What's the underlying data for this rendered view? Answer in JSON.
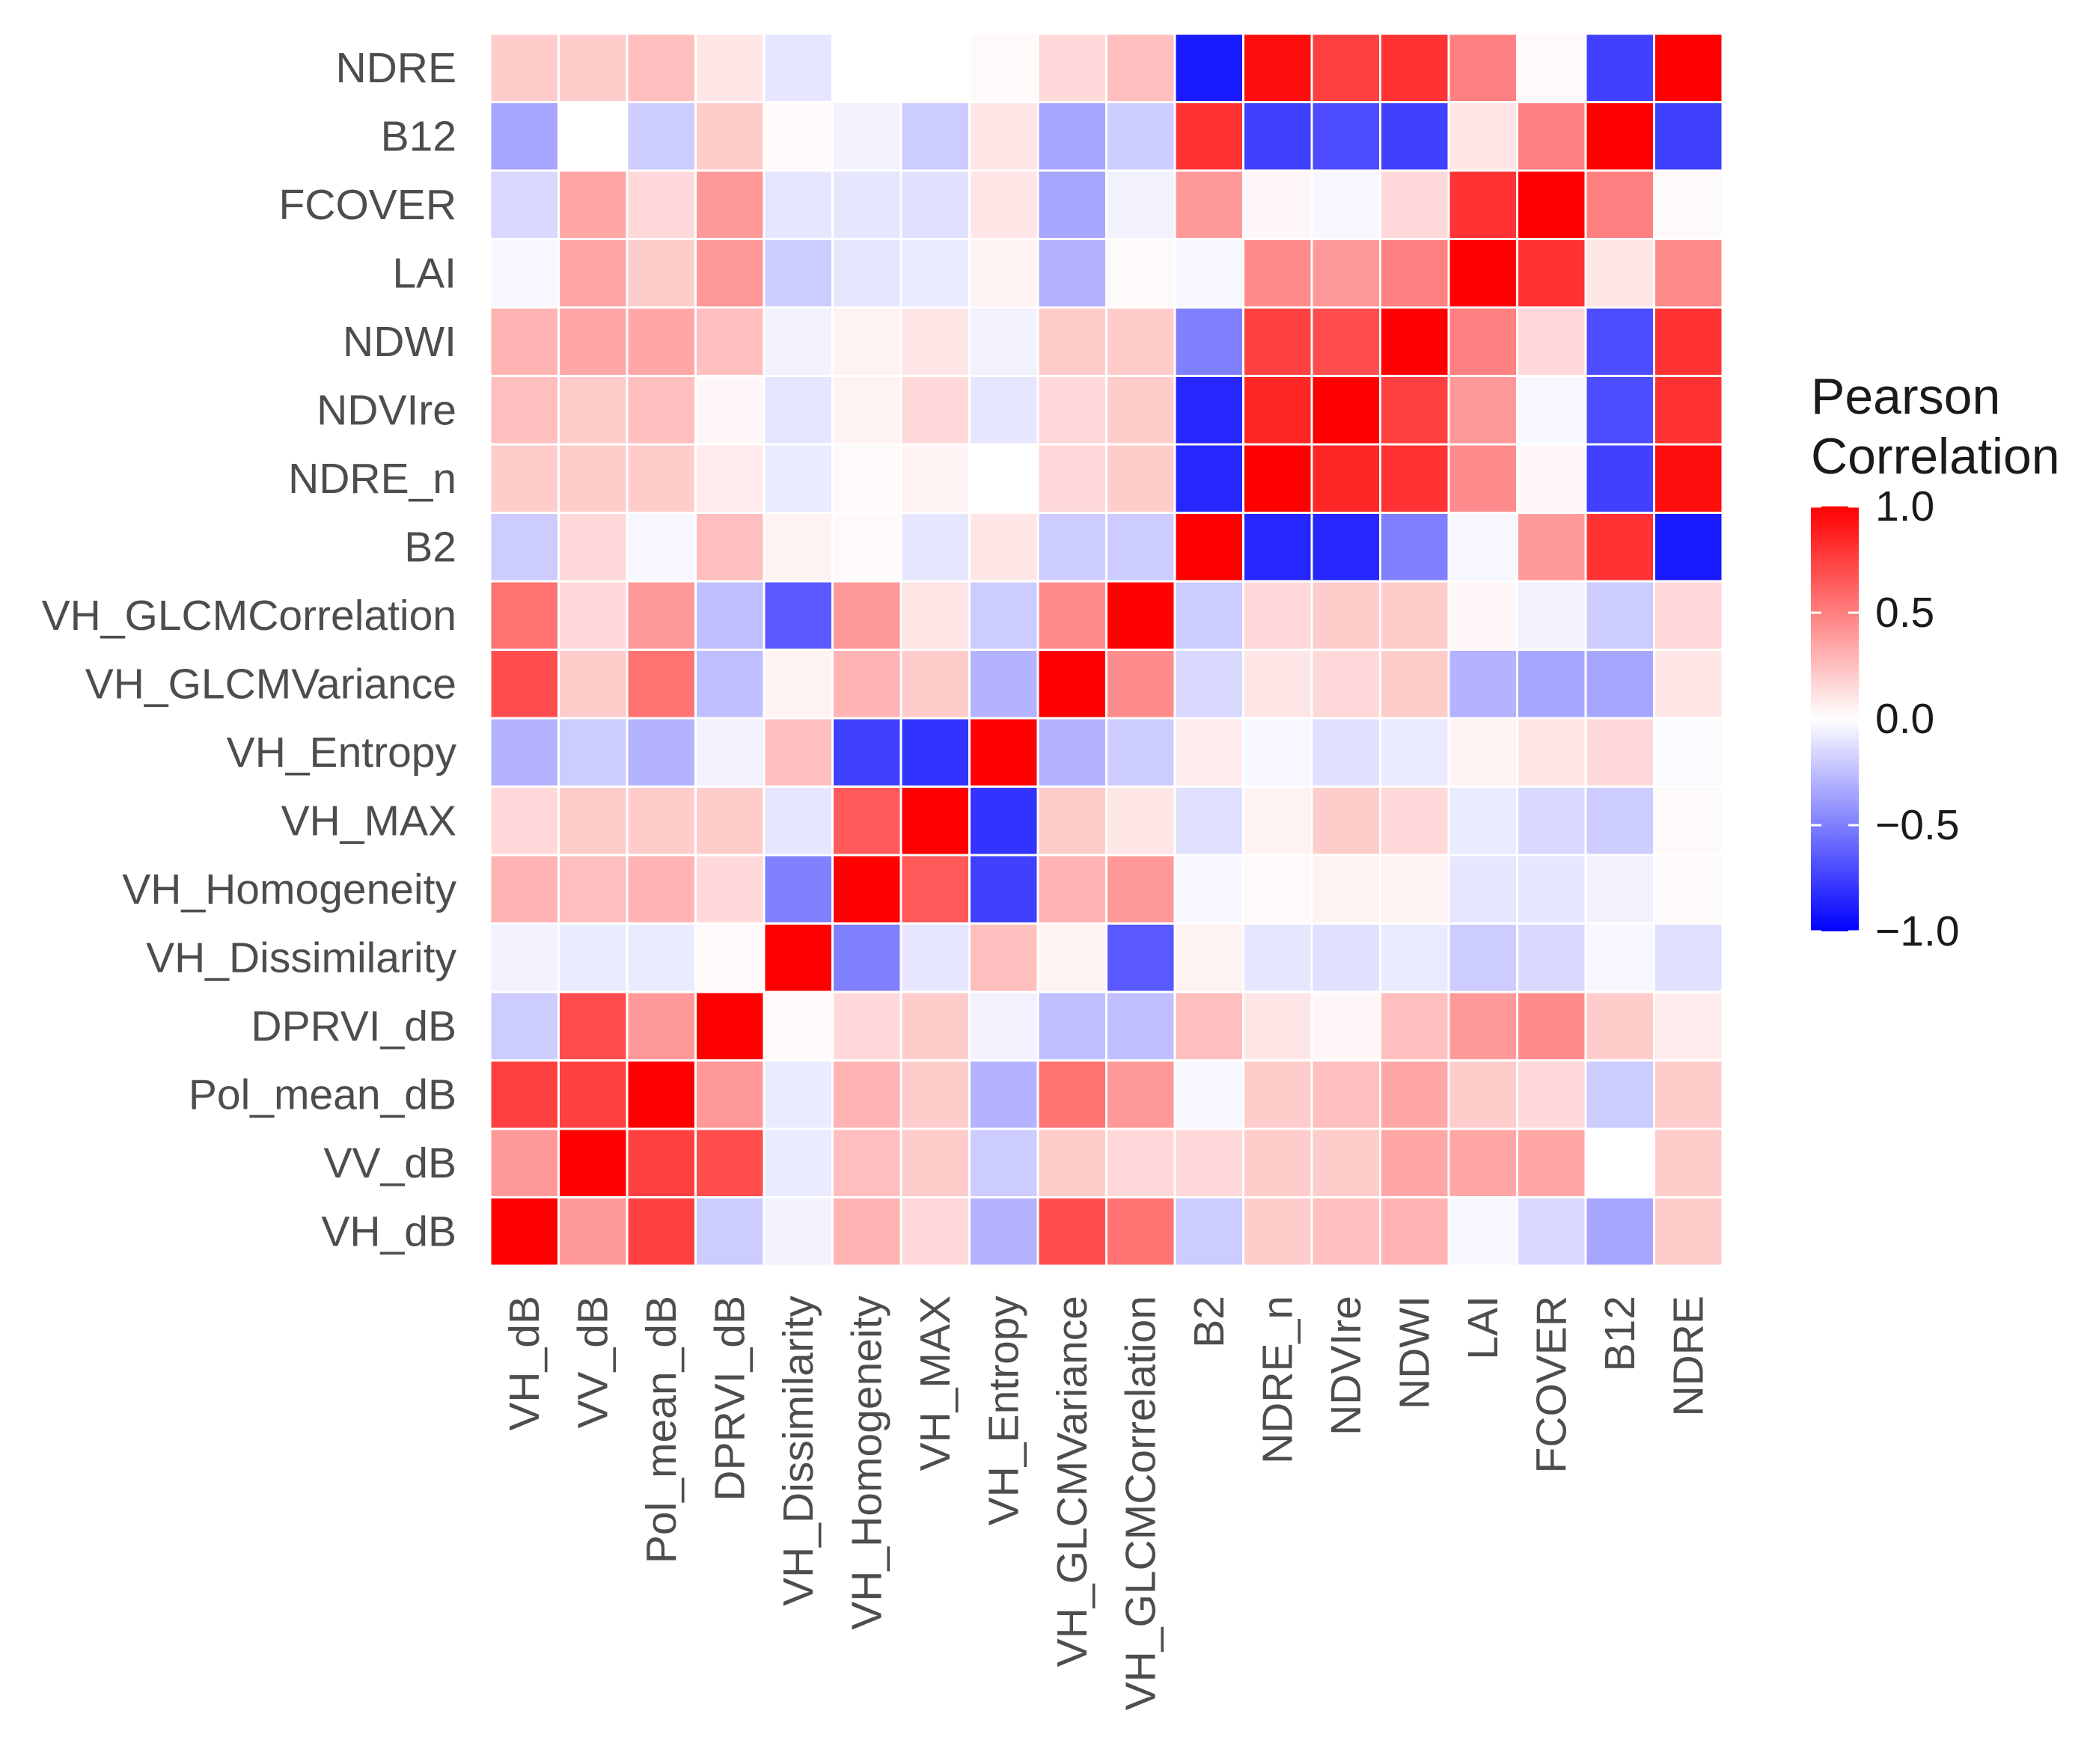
{
  "chart_data": {
    "type": "heatmap",
    "title": "",
    "xlabel": "",
    "ylabel": "",
    "x_labels": [
      "VH_dB",
      "VV_dB",
      "Pol_mean_dB",
      "DPRVI_dB",
      "VH_Dissimilarity",
      "VH_Homogeneity",
      "VH_MAX",
      "VH_Entropy",
      "VH_GLCMVariance",
      "VH_GLCMCorrelation",
      "B2",
      "NDRE_n",
      "NDVIre",
      "NDWI",
      "LAI",
      "FCOVER",
      "B12",
      "NDRE"
    ],
    "y_labels_top_to_bottom": [
      "NDRE",
      "B12",
      "FCOVER",
      "LAI",
      "NDWI",
      "NDVIre",
      "NDRE_n",
      "B2",
      "VH_GLCMCorrelation",
      "VH_GLCMVariance",
      "VH_Entropy",
      "VH_MAX",
      "VH_Homogeneity",
      "VH_Dissimilarity",
      "DPRVI_dB",
      "Pol_mean_dB",
      "VV_dB",
      "VH_dB"
    ],
    "values": [
      [
        0.2,
        0.2,
        0.25,
        0.1,
        -0.1,
        0.0,
        0.0,
        0.02,
        0.15,
        0.25,
        -0.9,
        0.95,
        0.75,
        0.8,
        0.5,
        0.02,
        -0.75,
        1.0
      ],
      [
        -0.35,
        0.0,
        -0.2,
        0.2,
        0.02,
        -0.05,
        -0.2,
        0.1,
        -0.35,
        -0.2,
        0.8,
        -0.75,
        -0.7,
        -0.75,
        0.1,
        0.5,
        1.0,
        -0.75
      ],
      [
        -0.15,
        0.35,
        0.15,
        0.4,
        -0.1,
        -0.1,
        -0.12,
        0.1,
        -0.35,
        -0.05,
        0.4,
        0.03,
        -0.03,
        0.15,
        0.8,
        1.0,
        0.5,
        0.02
      ],
      [
        -0.03,
        0.35,
        0.2,
        0.4,
        -0.2,
        -0.1,
        -0.08,
        0.05,
        -0.3,
        0.02,
        -0.03,
        0.45,
        0.4,
        0.5,
        1.0,
        0.8,
        0.1,
        0.45
      ],
      [
        0.3,
        0.35,
        0.35,
        0.25,
        -0.05,
        0.05,
        0.1,
        -0.05,
        0.2,
        0.2,
        -0.5,
        0.75,
        0.7,
        1.0,
        0.5,
        0.15,
        -0.7,
        0.8
      ],
      [
        0.25,
        0.2,
        0.25,
        0.03,
        -0.1,
        0.05,
        0.15,
        -0.1,
        0.15,
        0.2,
        -0.85,
        0.85,
        1.0,
        0.75,
        0.4,
        -0.03,
        -0.7,
        0.8
      ],
      [
        0.2,
        0.2,
        0.2,
        0.08,
        -0.08,
        0.02,
        0.05,
        0.0,
        0.15,
        0.2,
        -0.85,
        1.0,
        0.85,
        0.8,
        0.45,
        0.03,
        -0.75,
        0.95
      ],
      [
        -0.2,
        0.15,
        -0.03,
        0.25,
        0.05,
        0.02,
        -0.1,
        0.1,
        -0.2,
        -0.2,
        1.0,
        -0.85,
        -0.85,
        -0.5,
        -0.03,
        0.4,
        0.8,
        -0.9
      ],
      [
        0.55,
        0.15,
        0.4,
        -0.25,
        -0.65,
        0.4,
        0.1,
        -0.2,
        0.45,
        1.0,
        -0.2,
        0.15,
        0.2,
        0.2,
        0.03,
        -0.05,
        -0.2,
        0.15
      ],
      [
        0.7,
        0.2,
        0.55,
        -0.25,
        0.05,
        0.3,
        0.2,
        -0.3,
        1.0,
        0.45,
        -0.15,
        0.1,
        0.15,
        0.2,
        -0.3,
        -0.35,
        -0.35,
        0.1
      ],
      [
        -0.3,
        -0.2,
        -0.3,
        -0.05,
        0.25,
        -0.75,
        -0.8,
        1.0,
        -0.3,
        -0.2,
        0.08,
        -0.03,
        -0.12,
        -0.08,
        0.05,
        0.1,
        0.15,
        -0.02
      ],
      [
        0.15,
        0.2,
        0.2,
        0.2,
        -0.1,
        0.65,
        1.0,
        -0.8,
        0.2,
        0.1,
        -0.12,
        0.05,
        0.2,
        0.15,
        -0.08,
        -0.15,
        -0.2,
        0.02
      ],
      [
        0.3,
        0.25,
        0.3,
        0.15,
        -0.5,
        1.0,
        0.65,
        -0.75,
        0.3,
        0.4,
        -0.03,
        0.02,
        0.05,
        0.05,
        -0.1,
        -0.1,
        -0.05,
        0.02
      ],
      [
        -0.05,
        -0.08,
        -0.08,
        0.02,
        1.0,
        -0.5,
        -0.1,
        0.25,
        0.05,
        -0.65,
        0.05,
        -0.1,
        -0.12,
        -0.08,
        -0.2,
        -0.15,
        -0.03,
        -0.12
      ],
      [
        -0.2,
        0.7,
        0.4,
        1.0,
        0.02,
        0.15,
        0.2,
        -0.05,
        -0.25,
        -0.25,
        0.25,
        0.1,
        0.03,
        0.25,
        0.4,
        0.45,
        0.2,
        0.08
      ],
      [
        0.75,
        0.75,
        1.0,
        0.4,
        -0.08,
        0.3,
        0.2,
        -0.3,
        0.55,
        0.4,
        -0.03,
        0.2,
        0.25,
        0.35,
        0.2,
        0.15,
        -0.2,
        0.2
      ],
      [
        0.4,
        1.0,
        0.75,
        0.7,
        -0.08,
        0.25,
        0.2,
        -0.2,
        0.2,
        0.15,
        0.15,
        0.2,
        0.2,
        0.35,
        0.35,
        0.35,
        0.0,
        0.2
      ],
      [
        1.0,
        0.4,
        0.75,
        -0.2,
        -0.05,
        0.3,
        0.15,
        -0.3,
        0.7,
        0.55,
        -0.2,
        0.2,
        0.25,
        0.3,
        -0.03,
        -0.15,
        -0.35,
        0.2
      ]
    ],
    "range": [
      -1.0,
      1.0
    ],
    "colors": {
      "low": "#0000ff",
      "mid": "#ffffff",
      "high": "#ff0000"
    },
    "legend": {
      "title_lines": [
        "Pearson",
        "Correlation"
      ],
      "ticks": [
        1.0,
        0.5,
        0.0,
        -0.5,
        -1.0
      ],
      "tick_labels": [
        "1.0",
        "0.5",
        "0.0",
        "−0.5",
        "−1.0"
      ],
      "position": "right"
    }
  }
}
